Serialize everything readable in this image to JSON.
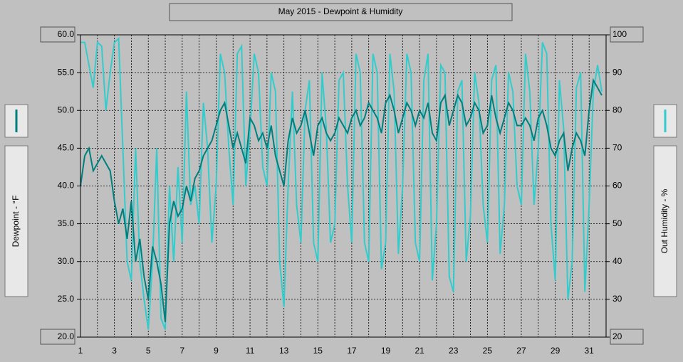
{
  "chart_data": {
    "type": "line",
    "title": "May 2015 - Dewpoint & Humidity",
    "ylabel": "Dewpoint - °F",
    "y2label": "Out Humidity - %",
    "xlim": [
      1,
      32
    ],
    "xticks": [
      1,
      3,
      5,
      7,
      9,
      11,
      13,
      15,
      17,
      19,
      21,
      23,
      25,
      27,
      29,
      31
    ],
    "ylim": [
      20,
      60
    ],
    "yticks": [
      {
        "value": 20,
        "label": "20.0"
      },
      {
        "value": 25,
        "label": "25.0"
      },
      {
        "value": 30,
        "label": "30.0"
      },
      {
        "value": 35,
        "label": "35.0"
      },
      {
        "value": 40,
        "label": "40.0"
      },
      {
        "value": 45,
        "label": "45.0"
      },
      {
        "value": 50,
        "label": "50.0"
      },
      {
        "value": 55,
        "label": "55.0"
      },
      {
        "value": 60,
        "label": "60.0"
      }
    ],
    "y2lim": [
      20,
      100
    ],
    "y2ticks": [
      20,
      30,
      40,
      50,
      60,
      70,
      80,
      90,
      100
    ],
    "grid": true,
    "x": [
      1,
      1.25,
      1.5,
      1.75,
      2,
      2.25,
      2.5,
      2.75,
      3,
      3.25,
      3.5,
      3.75,
      4,
      4.25,
      4.5,
      4.75,
      5,
      5.25,
      5.5,
      5.75,
      6,
      6.25,
      6.5,
      6.75,
      7,
      7.25,
      7.5,
      7.75,
      8,
      8.25,
      8.5,
      8.75,
      9,
      9.25,
      9.5,
      9.75,
      10,
      10.25,
      10.5,
      10.75,
      11,
      11.25,
      11.5,
      11.75,
      12,
      12.25,
      12.5,
      12.75,
      13,
      13.25,
      13.5,
      13.75,
      14,
      14.25,
      14.5,
      14.75,
      15,
      15.25,
      15.5,
      15.75,
      16,
      16.25,
      16.5,
      16.75,
      17,
      17.25,
      17.5,
      17.75,
      18,
      18.25,
      18.5,
      18.75,
      19,
      19.25,
      19.5,
      19.75,
      20,
      20.25,
      20.5,
      20.75,
      21,
      21.25,
      21.5,
      21.75,
      22,
      22.25,
      22.5,
      22.75,
      23,
      23.25,
      23.5,
      23.75,
      24,
      24.25,
      24.5,
      24.75,
      25,
      25.25,
      25.5,
      25.75,
      26,
      26.25,
      26.5,
      26.75,
      27,
      27.25,
      27.5,
      27.75,
      28,
      28.25,
      28.5,
      28.75,
      29,
      29.25,
      29.5,
      29.75,
      30,
      30.25,
      30.5,
      30.75,
      31,
      31.25,
      31.5,
      31.75
    ],
    "series": [
      {
        "color": "#007f7f",
        "values": [
          40,
          44,
          45,
          42,
          43,
          44,
          43,
          42,
          38,
          35,
          37,
          33,
          38,
          30,
          33,
          28,
          25,
          32,
          30,
          27,
          22,
          35,
          38,
          36,
          37,
          40,
          38,
          41,
          42,
          44,
          45,
          46,
          48,
          50,
          51,
          48,
          45,
          47,
          45,
          43,
          49,
          48,
          46,
          47,
          45,
          48,
          44,
          42,
          40,
          46,
          49,
          47,
          48,
          50,
          47,
          44,
          48,
          49,
          47,
          46,
          47,
          49,
          48,
          47,
          49,
          50,
          48,
          49,
          51,
          50,
          49,
          47,
          51,
          52,
          50,
          47,
          49,
          51,
          50,
          48,
          50,
          49,
          51,
          47,
          46,
          51,
          52,
          48,
          50,
          52,
          51,
          48,
          49,
          51,
          50,
          47,
          48,
          52,
          49,
          47,
          49,
          51,
          50,
          48,
          48,
          49,
          48,
          46,
          49,
          50,
          48,
          45,
          44,
          46,
          47,
          42,
          45,
          47,
          46,
          44,
          50,
          54,
          53,
          52
        ]
      },
      {
        "color": "#33cccc",
        "axis": "y2",
        "values": [
          98,
          98,
          92,
          86,
          98,
          97,
          80,
          90,
          98,
          99,
          70,
          40,
          35,
          70,
          40,
          30,
          22,
          40,
          70,
          25,
          22,
          60,
          40,
          65,
          45,
          85,
          55,
          60,
          50,
          82,
          70,
          45,
          60,
          95,
          90,
          70,
          55,
          95,
          97,
          60,
          75,
          95,
          90,
          65,
          60,
          90,
          85,
          40,
          28,
          60,
          85,
          55,
          45,
          80,
          88,
          45,
          40,
          90,
          75,
          45,
          50,
          88,
          90,
          60,
          45,
          95,
          90,
          45,
          40,
          95,
          90,
          38,
          45,
          95,
          85,
          42,
          60,
          95,
          90,
          45,
          40,
          88,
          95,
          35,
          50,
          92,
          90,
          36,
          32,
          85,
          88,
          40,
          52,
          90,
          82,
          55,
          45,
          88,
          92,
          42,
          55,
          90,
          85,
          60,
          55,
          95,
          85,
          55,
          70,
          98,
          95,
          50,
          35,
          88,
          75,
          30,
          40,
          86,
          90,
          32,
          55,
          85,
          92,
          85
        ]
      }
    ]
  }
}
